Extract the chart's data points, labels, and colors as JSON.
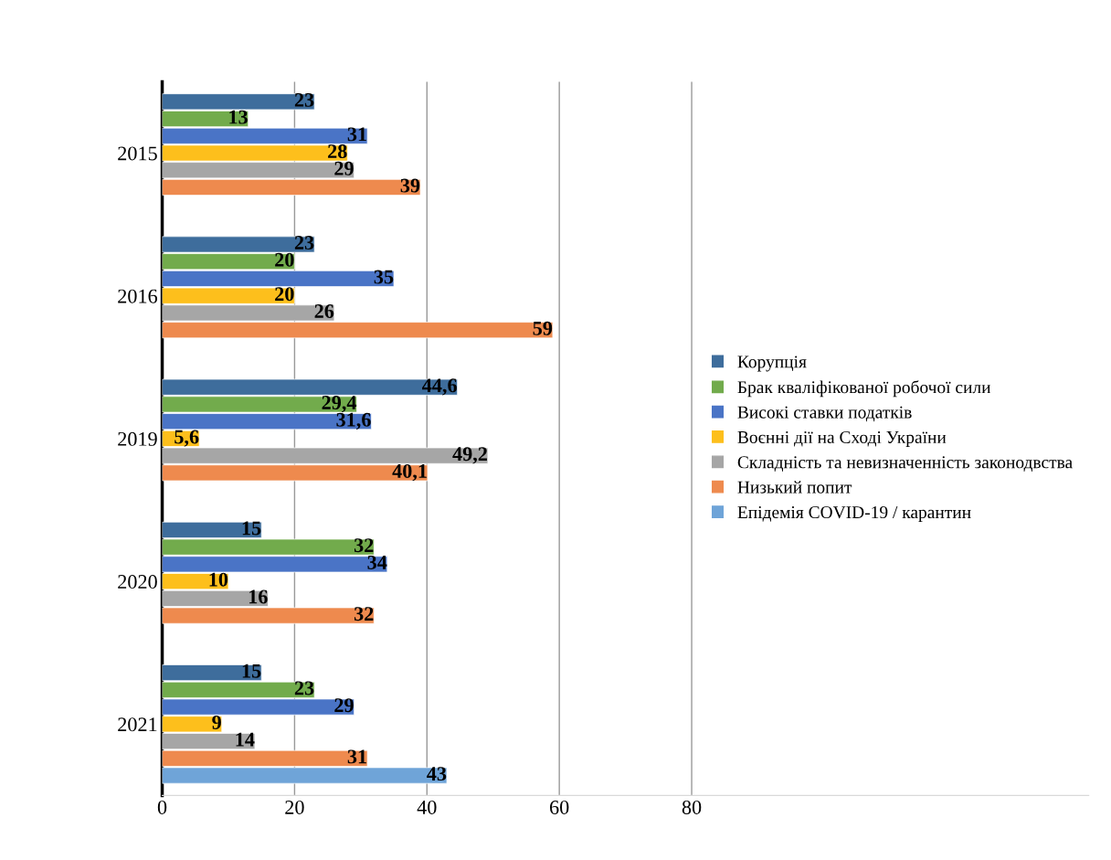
{
  "chart_data": {
    "type": "bar",
    "orientation": "horizontal",
    "categories": [
      "2015",
      "2016",
      "2019",
      "2020",
      "2021"
    ],
    "series": [
      {
        "name": "Корупція",
        "color": "#3e6d9c",
        "values": [
          23,
          23,
          44.6,
          15,
          15
        ],
        "value_labels": [
          "23",
          "23",
          "44,6",
          "15",
          "15"
        ]
      },
      {
        "name": "Брак кваліфікованої робочої сили",
        "color": "#72ab4c",
        "values": [
          13,
          20,
          29.4,
          32,
          23
        ],
        "value_labels": [
          "13",
          "20",
          "29,4",
          "32",
          "23"
        ]
      },
      {
        "name": "Високі ставки податків",
        "color": "#4a74c6",
        "values": [
          31,
          35,
          31.6,
          34,
          29
        ],
        "value_labels": [
          "31",
          "35",
          "31,6",
          "34",
          "29"
        ]
      },
      {
        "name": "Воєнні дії на Сході України",
        "color": "#fdbf1c",
        "values": [
          28,
          20,
          5.6,
          10,
          9
        ],
        "value_labels": [
          "28",
          "20",
          "5,6",
          "10",
          "9"
        ]
      },
      {
        "name": "Складність та невизначенність законодвства",
        "color": "#a6a6a6",
        "values": [
          29,
          26,
          49.2,
          16,
          14
        ],
        "value_labels": [
          "29",
          "26",
          "49,2",
          "16",
          "14"
        ]
      },
      {
        "name": "Низький попит",
        "color": "#ee8a4e",
        "values": [
          39,
          59,
          40.1,
          32,
          31
        ],
        "value_labels": [
          "39",
          "59",
          "40,1",
          "32",
          "31"
        ]
      },
      {
        "name": "Епідемія COVID-19 / карантин",
        "color": "#6fa4d8",
        "values": [
          null,
          null,
          null,
          null,
          43
        ],
        "value_labels": [
          null,
          null,
          null,
          null,
          "43"
        ]
      }
    ],
    "xlim": [
      0,
      140
    ],
    "xticks": [
      0,
      20,
      40,
      60,
      80
    ],
    "grid": "x",
    "legend": "right"
  }
}
